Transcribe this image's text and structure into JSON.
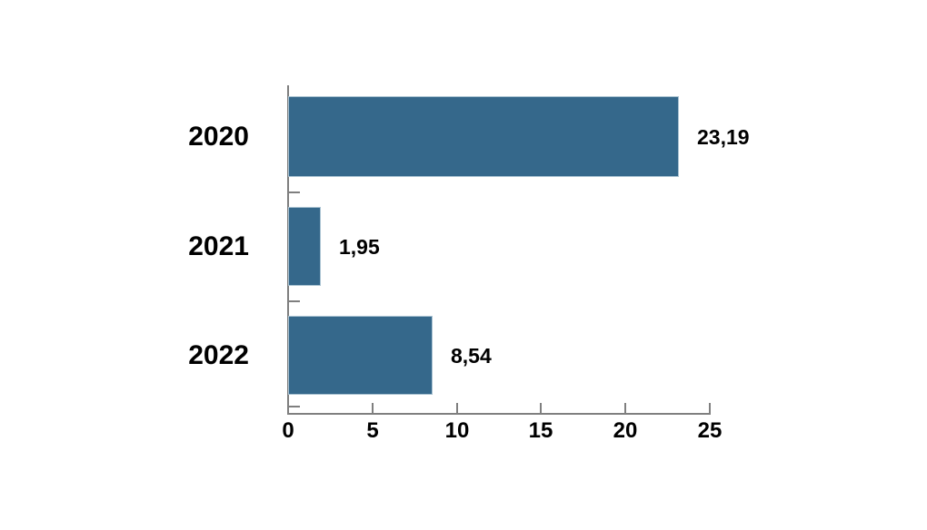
{
  "chart_data": {
    "type": "bar",
    "orientation": "horizontal",
    "title": "",
    "xlabel": "",
    "ylabel": "",
    "categories": [
      "2020",
      "2021",
      "2022"
    ],
    "values": [
      23.19,
      1.95,
      8.54
    ],
    "value_labels": [
      "23,19",
      "1,95",
      "8,54"
    ],
    "xlim": [
      0,
      25
    ],
    "x_ticks": [
      0,
      5,
      10,
      15,
      20,
      25
    ],
    "x_tick_labels": [
      "0",
      "5",
      "10",
      "15",
      "20",
      "25"
    ],
    "grid": false,
    "legend": false,
    "colors": {
      "bar_fill": "#35688b",
      "bar_border": "#a9c2d1",
      "axis": "#7f7f7f",
      "text": "#000000",
      "background": "#ffffff"
    }
  }
}
